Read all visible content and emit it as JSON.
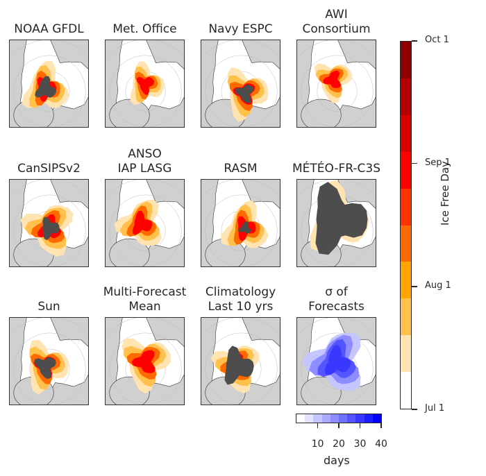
{
  "chart_data": {
    "type": "heatmap",
    "title": "",
    "panels": [
      {
        "title": [
          "NOAA GFDL"
        ],
        "kind": "ice-free-day",
        "extent": 0.55,
        "core_fraction": 0.35,
        "center": [
          0.45,
          0.55
        ]
      },
      {
        "title": [
          "Met. Office"
        ],
        "kind": "ice-free-day",
        "extent": 0.45,
        "core_fraction": 0.0,
        "center": [
          0.5,
          0.5
        ]
      },
      {
        "title": [
          "Navy ESPC"
        ],
        "kind": "ice-free-day",
        "extent": 0.55,
        "core_fraction": 0.3,
        "center": [
          0.55,
          0.6
        ]
      },
      {
        "title": [
          "AWI",
          "Consortium"
        ],
        "kind": "ice-free-day",
        "extent": 0.45,
        "core_fraction": 0.0,
        "center": [
          0.45,
          0.45
        ]
      },
      {
        "title": [
          "CanSIPSv2"
        ],
        "kind": "ice-free-day",
        "extent": 0.6,
        "core_fraction": 0.3,
        "center": [
          0.5,
          0.55
        ]
      },
      {
        "title": [
          "ANSO",
          "IAP LASG"
        ],
        "kind": "ice-free-day",
        "extent": 0.55,
        "core_fraction": 0.0,
        "center": [
          0.45,
          0.5
        ]
      },
      {
        "title": [
          "RASM"
        ],
        "kind": "ice-free-day",
        "extent": 0.55,
        "core_fraction": 0.2,
        "center": [
          0.55,
          0.55
        ]
      },
      {
        "title": [
          "MÉTÉO-FR-C3S"
        ],
        "kind": "ice-free-day",
        "extent": 0.75,
        "core_fraction": 0.75,
        "center": [
          0.5,
          0.45
        ]
      },
      {
        "title": [
          "Sun"
        ],
        "kind": "ice-free-day",
        "extent": 0.55,
        "core_fraction": 0.35,
        "center": [
          0.45,
          0.55
        ]
      },
      {
        "title": [
          "Multi-Forecast",
          "Mean"
        ],
        "kind": "ice-free-day",
        "extent": 0.6,
        "core_fraction": 0.0,
        "center": [
          0.5,
          0.5
        ]
      },
      {
        "title": [
          "Climatology",
          "Last 10 yrs"
        ],
        "kind": "ice-free-day",
        "extent": 0.55,
        "core_fraction": 0.55,
        "center": [
          0.45,
          0.55
        ]
      },
      {
        "title": [
          "σ of",
          "Forecasts"
        ],
        "kind": "std-days",
        "extent": 0.7,
        "core_fraction": 0.0,
        "center": [
          0.5,
          0.5
        ]
      }
    ],
    "colorbar_main": {
      "label": "Ice Free Day",
      "ticks": [
        "Jul 1",
        "Aug 1",
        "Sep 1",
        "Oct 1"
      ],
      "tick_positions": [
        0,
        0.333,
        0.667,
        1.0
      ],
      "colors": [
        "#ffffff",
        "#ffe4b2",
        "#ffc04c",
        "#ffa500",
        "#ff6a00",
        "#ff3300",
        "#ff0000",
        "#d90000",
        "#b40000",
        "#8e0000"
      ],
      "no_melt_color": "#4d4d4d",
      "land_color": "#d0d0d0"
    },
    "colorbar_std": {
      "label": "days",
      "ticks": [
        10,
        20,
        30,
        40
      ],
      "range": [
        0,
        40
      ],
      "colors": [
        "#ffffff",
        "#e3e3ff",
        "#c6c6ff",
        "#aaaaff",
        "#8d8dff",
        "#7171ff",
        "#5555ff",
        "#3838ff",
        "#1c1cff",
        "#0000ff"
      ]
    }
  }
}
